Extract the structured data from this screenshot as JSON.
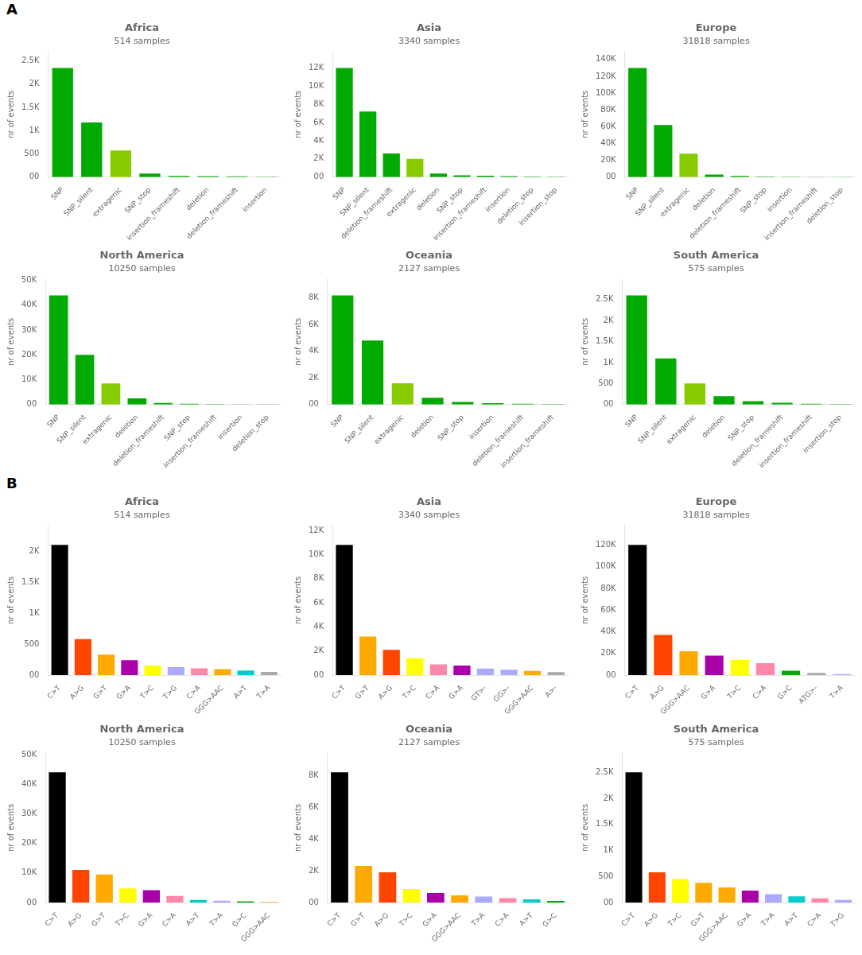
{
  "chart_data": [
    {
      "type": "bar",
      "title": "Africa",
      "subtitle": "514 samples",
      "annotations": [
        "A"
      ],
      "ylabel": "nr of events",
      "grid": false,
      "categories": [
        "SNP",
        "SNP_silent",
        "extragenic",
        "SNP_stop",
        "insertion_frameshift",
        "deletion",
        "deletion_frameshift",
        "insertion"
      ],
      "values": [
        2350,
        1175,
        575,
        75,
        25,
        20,
        15,
        10
      ],
      "colors": [
        "#00aa00",
        "#00aa00",
        "#88cc00",
        "#00aa00",
        "#00aa00",
        "#00aa00",
        "#00aa00",
        "#00aa00"
      ],
      "ylim": [
        0,
        2702.5
      ],
      "yticks": [
        {
          "value": 0,
          "label": "00"
        },
        500,
        {
          "value": 1000,
          "label": "1K"
        },
        {
          "value": 1500,
          "label": "1.5K"
        },
        {
          "value": 2000,
          "label": "2K"
        },
        {
          "value": 2500,
          "label": "2.5K"
        }
      ]
    },
    {
      "type": "bar",
      "title": "Asia",
      "subtitle": "3340 samples",
      "ylabel": "nr of events",
      "grid": false,
      "categories": [
        "SNP",
        "SNP_silent",
        "deletion_frameshift",
        "extragenic",
        "deletion",
        "SNP_stop",
        "insertion_frameshift",
        "insertion",
        "deletion_stop",
        "insertion_stop"
      ],
      "values": [
        12000,
        7200,
        2600,
        2000,
        400,
        200,
        150,
        100,
        60,
        40
      ],
      "colors": [
        "#00aa00",
        "#00aa00",
        "#00aa00",
        "#88cc00",
        "#00aa00",
        "#00aa00",
        "#00aa00",
        "#00aa00",
        "#00aa00",
        "#00aa00"
      ],
      "ylim": [
        0,
        13800
      ],
      "yticks": [
        {
          "value": 0,
          "label": "00"
        },
        {
          "value": 2000,
          "label": "2K"
        },
        {
          "value": 4000,
          "label": "4K"
        },
        {
          "value": 6000,
          "label": "6K"
        },
        {
          "value": 8000,
          "label": "8K"
        },
        {
          "value": 10000,
          "label": "10K"
        },
        {
          "value": 12000,
          "label": "12K"
        }
      ]
    },
    {
      "type": "bar",
      "title": "Europe",
      "subtitle": "31818 samples",
      "ylabel": "nr of events",
      "grid": false,
      "categories": [
        "SNP",
        "SNP_silent",
        "extragenic",
        "deletion",
        "deletion_frameshift",
        "SNP_stop",
        "insertion",
        "insertion_frameshift",
        "deletion_stop"
      ],
      "values": [
        130000,
        62000,
        28000,
        3000,
        1500,
        800,
        400,
        200,
        100
      ],
      "colors": [
        "#00aa00",
        "#00aa00",
        "#88cc00",
        "#00aa00",
        "#00aa00",
        "#00aa00",
        "#00aa00",
        "#00aa00",
        "#00aa00"
      ],
      "ylim": [
        0,
        149500
      ],
      "yticks": [
        {
          "value": 0,
          "label": "00"
        },
        {
          "value": 20000,
          "label": "20K"
        },
        {
          "value": 40000,
          "label": "40K"
        },
        {
          "value": 60000,
          "label": "60K"
        },
        {
          "value": 80000,
          "label": "80K"
        },
        {
          "value": 100000,
          "label": "100K"
        },
        {
          "value": 120000,
          "label": "120K"
        },
        {
          "value": 140000,
          "label": "140K"
        }
      ]
    },
    {
      "type": "bar",
      "title": "North America",
      "subtitle": "10250 samples",
      "ylabel": "nr of events",
      "grid": false,
      "categories": [
        "SNP",
        "SNP_silent",
        "extragenic",
        "deletion",
        "deletion_frameshift",
        "SNP_stop",
        "insertion_frameshift",
        "insertion",
        "deletion_stop"
      ],
      "values": [
        44000,
        20000,
        8500,
        2500,
        600,
        300,
        150,
        80,
        40
      ],
      "colors": [
        "#00aa00",
        "#00aa00",
        "#88cc00",
        "#00aa00",
        "#00aa00",
        "#00aa00",
        "#00aa00",
        "#00aa00",
        "#00aa00"
      ],
      "ylim": [
        0,
        50600
      ],
      "yticks": [
        {
          "value": 0,
          "label": "00"
        },
        {
          "value": 10000,
          "label": "10K"
        },
        {
          "value": 20000,
          "label": "20K"
        },
        {
          "value": 30000,
          "label": "30K"
        },
        {
          "value": 40000,
          "label": "40K"
        },
        {
          "value": 50000,
          "label": "50K"
        }
      ]
    },
    {
      "type": "bar",
      "title": "Oceania",
      "subtitle": "2127 samples",
      "ylabel": "nr of events",
      "grid": false,
      "categories": [
        "SNP",
        "SNP_silent",
        "extragenic",
        "deletion",
        "SNP_stop",
        "insertion",
        "deletion_frameshift",
        "insertion_frameshift"
      ],
      "values": [
        8200,
        4800,
        1600,
        500,
        200,
        100,
        60,
        30
      ],
      "colors": [
        "#00aa00",
        "#00aa00",
        "#88cc00",
        "#00aa00",
        "#00aa00",
        "#00aa00",
        "#00aa00",
        "#00aa00"
      ],
      "ylim": [
        0,
        9430
      ],
      "yticks": [
        {
          "value": 0,
          "label": "00"
        },
        {
          "value": 2000,
          "label": "2K"
        },
        {
          "value": 4000,
          "label": "4K"
        },
        {
          "value": 6000,
          "label": "6K"
        },
        {
          "value": 8000,
          "label": "8K"
        }
      ]
    },
    {
      "type": "bar",
      "title": "South America",
      "subtitle": "575 samples",
      "ylabel": "nr of events",
      "grid": false,
      "categories": [
        "SNP",
        "SNP_silent",
        "extragenic",
        "deletion",
        "SNP_stop",
        "deletion_frameshift",
        "insertion_frameshift",
        "insertion_stop"
      ],
      "values": [
        2600,
        1100,
        500,
        200,
        80,
        40,
        20,
        10
      ],
      "colors": [
        "#00aa00",
        "#00aa00",
        "#88cc00",
        "#00aa00",
        "#00aa00",
        "#00aa00",
        "#00aa00",
        "#00aa00"
      ],
      "ylim": [
        0,
        2990
      ],
      "yticks": [
        {
          "value": 0,
          "label": "00"
        },
        500,
        {
          "value": 1000,
          "label": "1K"
        },
        {
          "value": 1500,
          "label": "1.5K"
        },
        {
          "value": 2000,
          "label": "2K"
        },
        {
          "value": 2500,
          "label": "2.5K"
        }
      ]
    },
    {
      "type": "bar",
      "title": "Africa",
      "subtitle": "514 samples",
      "annotations": [
        "B"
      ],
      "ylabel": "nr of events",
      "grid": false,
      "categories": [
        "C>T",
        "A>G",
        "G>T",
        "G>A",
        "T>C",
        "T>G",
        "C>A",
        "GGG>AAC",
        "A>T",
        "T>A"
      ],
      "values": [
        2100,
        580,
        330,
        240,
        155,
        130,
        110,
        95,
        75,
        50
      ],
      "colors": [
        "#000000",
        "#ff4400",
        "#ffaa00",
        "#aa00aa",
        "#ffff00",
        "#aaaaff",
        "#ff88aa",
        "#ffaa00",
        "#00cccc",
        "#aaaaaa"
      ],
      "ylim": [
        0,
        2415
      ],
      "yticks": [
        {
          "value": 0,
          "label": "00"
        },
        500,
        {
          "value": 1000,
          "label": "1K"
        },
        {
          "value": 1500,
          "label": "1.5K"
        },
        {
          "value": 2000,
          "label": "2K"
        }
      ]
    },
    {
      "type": "bar",
      "title": "Asia",
      "subtitle": "3340 samples",
      "ylabel": "nr of events",
      "grid": false,
      "categories": [
        "C>T",
        "G>T",
        "A>G",
        "T>C",
        "C>A",
        "G>A",
        "GT>-",
        "GG>-",
        "GGG>AAC",
        "A>-"
      ],
      "values": [
        10800,
        3200,
        2100,
        1400,
        900,
        800,
        550,
        450,
        350,
        250
      ],
      "colors": [
        "#000000",
        "#ffaa00",
        "#ff4400",
        "#ffff00",
        "#ff88aa",
        "#aa00aa",
        "#aaaaff",
        "#aaaaff",
        "#ffaa00",
        "#aaaaaa"
      ],
      "ylim": [
        0,
        12420
      ],
      "yticks": [
        {
          "value": 0,
          "label": "00"
        },
        {
          "value": 2000,
          "label": "2K"
        },
        {
          "value": 4000,
          "label": "4K"
        },
        {
          "value": 6000,
          "label": "6K"
        },
        {
          "value": 8000,
          "label": "8K"
        },
        {
          "value": 10000,
          "label": "10K"
        },
        {
          "value": 12000,
          "label": "12K"
        }
      ]
    },
    {
      "type": "bar",
      "title": "Europe",
      "subtitle": "31818 samples",
      "ylabel": "nr of events",
      "grid": false,
      "categories": [
        "C>T",
        "A>G",
        "GGG>AAC",
        "G>A",
        "T>C",
        "C>A",
        "G>C",
        "ATG>-",
        "T>A"
      ],
      "values": [
        120000,
        37000,
        22000,
        18000,
        14000,
        11000,
        4000,
        2000,
        1000
      ],
      "colors": [
        "#000000",
        "#ff4400",
        "#ffaa00",
        "#aa00aa",
        "#ffff00",
        "#ff88aa",
        "#00aa00",
        "#aaaaaa",
        "#aaaaff"
      ],
      "ylim": [
        0,
        138000
      ],
      "yticks": [
        {
          "value": 0,
          "label": "00"
        },
        {
          "value": 20000,
          "label": "20K"
        },
        {
          "value": 40000,
          "label": "40K"
        },
        {
          "value": 60000,
          "label": "60K"
        },
        {
          "value": 80000,
          "label": "80K"
        },
        {
          "value": 100000,
          "label": "100K"
        },
        {
          "value": 120000,
          "label": "120K"
        }
      ]
    },
    {
      "type": "bar",
      "title": "North America",
      "subtitle": "10250 samples",
      "ylabel": "nr of events",
      "grid": false,
      "categories": [
        "C>T",
        "A>G",
        "G>T",
        "T>C",
        "G>A",
        "C>A",
        "A>T",
        "T>A",
        "G>C",
        "GGG>AAC"
      ],
      "values": [
        44000,
        11000,
        9500,
        4800,
        4200,
        2200,
        900,
        600,
        400,
        200
      ],
      "colors": [
        "#000000",
        "#ff4400",
        "#ffaa00",
        "#ffff00",
        "#aa00aa",
        "#ff88aa",
        "#00cccc",
        "#aaaaff",
        "#00aa00",
        "#ffaa00"
      ],
      "ylim": [
        0,
        50600
      ],
      "yticks": [
        {
          "value": 0,
          "label": "00"
        },
        {
          "value": 10000,
          "label": "10K"
        },
        {
          "value": 20000,
          "label": "20K"
        },
        {
          "value": 30000,
          "label": "30K"
        },
        {
          "value": 40000,
          "label": "40K"
        },
        {
          "value": 50000,
          "label": "50K"
        }
      ]
    },
    {
      "type": "bar",
      "title": "Oceania",
      "subtitle": "2127 samples",
      "ylabel": "nr of events",
      "grid": false,
      "categories": [
        "C>T",
        "G>T",
        "A>G",
        "T>C",
        "G>A",
        "GGG>AAC",
        "T>A",
        "C>A",
        "A>T",
        "G>C"
      ],
      "values": [
        8200,
        2300,
        1900,
        850,
        600,
        450,
        380,
        280,
        200,
        100
      ],
      "colors": [
        "#000000",
        "#ffaa00",
        "#ff4400",
        "#ffff00",
        "#aa00aa",
        "#ffaa00",
        "#aaaaff",
        "#ff88aa",
        "#00cccc",
        "#00aa00"
      ],
      "ylim": [
        0,
        9430
      ],
      "yticks": [
        {
          "value": 0,
          "label": "00"
        },
        {
          "value": 2000,
          "label": "2K"
        },
        {
          "value": 4000,
          "label": "4K"
        },
        {
          "value": 6000,
          "label": "6K"
        },
        {
          "value": 8000,
          "label": "8K"
        }
      ]
    },
    {
      "type": "bar",
      "title": "South America",
      "subtitle": "575 samples",
      "ylabel": "nr of events",
      "grid": false,
      "categories": [
        "C>T",
        "A>G",
        "T>C",
        "G>T",
        "GGG>AAC",
        "G>A",
        "T>A",
        "A>T",
        "C>A",
        "T>G"
      ],
      "values": [
        2500,
        580,
        450,
        380,
        290,
        230,
        160,
        120,
        80,
        50
      ],
      "colors": [
        "#000000",
        "#ff4400",
        "#ffff00",
        "#ffaa00",
        "#ffaa00",
        "#aa00aa",
        "#aaaaff",
        "#00cccc",
        "#ff88aa",
        "#aaaaff"
      ],
      "ylim": [
        0,
        2875
      ],
      "yticks": [
        {
          "value": 0,
          "label": "00"
        },
        500,
        {
          "value": 1000,
          "label": "1K"
        },
        {
          "value": 1500,
          "label": "1.5K"
        },
        {
          "value": 2000,
          "label": "2K"
        },
        {
          "value": 2500,
          "label": "2.5K"
        }
      ]
    }
  ]
}
